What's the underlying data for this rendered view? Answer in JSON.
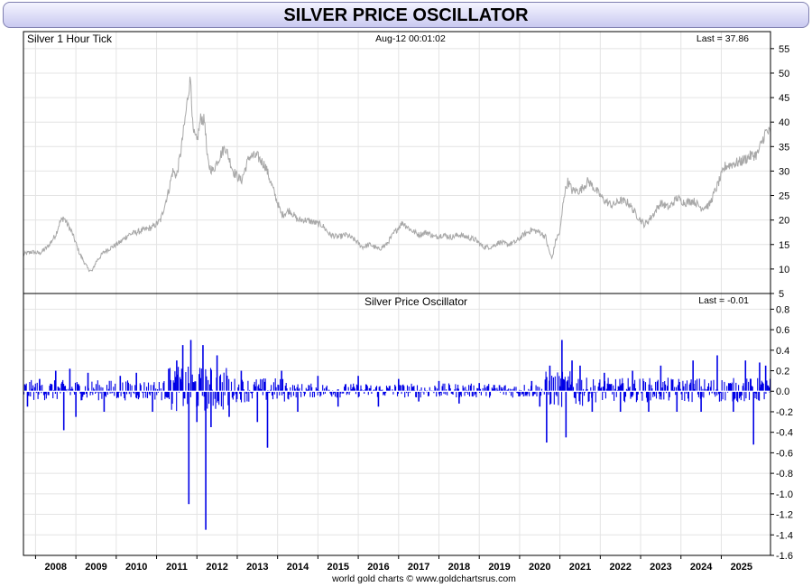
{
  "title": "SILVER PRICE OSCILLATOR",
  "footer": "world gold charts © www.goldchartsrus.com",
  "colors": {
    "price": "#a8a8a8",
    "oscillator": "#0000e6",
    "grid": "#e4e4e4",
    "frame": "#000000",
    "title_bg": "#c9c9f0"
  },
  "chart_data": [
    {
      "type": "line",
      "name_label": "Silver 1 Hour Tick",
      "center_label": "Aug-12  00:01:02",
      "last_label": "Last = 37.86",
      "ylim": [
        5,
        57
      ],
      "yticks": [
        5,
        10,
        15,
        20,
        25,
        30,
        35,
        40,
        45,
        50,
        55
      ],
      "xlim": [
        2007.2,
        2025.72
      ],
      "xticks": [
        "2008",
        "2009",
        "2010",
        "2011",
        "2012",
        "2013",
        "2014",
        "2015",
        "2016",
        "2017",
        "2018",
        "2019",
        "2020",
        "2021",
        "2022",
        "2023",
        "2024",
        "2025"
      ],
      "grid": true,
      "series": [
        {
          "x": [
            2007.2,
            2007.4,
            2007.6,
            2007.8,
            2008.0,
            2008.1,
            2008.2,
            2008.4,
            2008.6,
            2008.8,
            2008.9,
            2009.0,
            2009.2,
            2009.4,
            2009.6,
            2009.8,
            2010.0,
            2010.2,
            2010.4,
            2010.6,
            2010.8,
            2010.9,
            2011.0,
            2011.1,
            2011.2,
            2011.3,
            2011.35,
            2011.4,
            2011.5,
            2011.6,
            2011.7,
            2011.75,
            2011.8,
            2011.9,
            2012.0,
            2012.2,
            2012.4,
            2012.6,
            2012.8,
            2013.0,
            2013.2,
            2013.4,
            2013.6,
            2013.8,
            2014.0,
            2014.2,
            2014.4,
            2014.6,
            2014.8,
            2015.0,
            2015.2,
            2015.4,
            2015.6,
            2015.8,
            2016.0,
            2016.2,
            2016.4,
            2016.6,
            2016.8,
            2017.0,
            2017.2,
            2017.4,
            2017.6,
            2017.8,
            2018.0,
            2018.2,
            2018.4,
            2018.6,
            2018.8,
            2019.0,
            2019.2,
            2019.4,
            2019.6,
            2019.8,
            2020.0,
            2020.15,
            2020.2,
            2020.3,
            2020.4,
            2020.5,
            2020.6,
            2020.7,
            2020.8,
            2021.0,
            2021.2,
            2021.4,
            2021.6,
            2021.8,
            2022.0,
            2022.2,
            2022.4,
            2022.6,
            2022.8,
            2023.0,
            2023.2,
            2023.4,
            2023.6,
            2023.8,
            2024.0,
            2024.2,
            2024.4,
            2024.6,
            2024.8,
            2025.0,
            2025.2,
            2025.4,
            2025.6,
            2025.72
          ],
          "y": [
            13.0,
            13.5,
            13.2,
            14.5,
            17.0,
            19.5,
            20.5,
            17.5,
            13.0,
            10.0,
            9.5,
            11.5,
            13.5,
            14.5,
            15.5,
            17.0,
            17.5,
            18.0,
            18.5,
            20.0,
            26.0,
            30.0,
            29.0,
            34.0,
            40.0,
            47.0,
            49.0,
            38.0,
            36.0,
            41.0,
            40.0,
            33.0,
            31.0,
            30.0,
            32.0,
            35.0,
            30.0,
            28.0,
            33.0,
            33.0,
            31.0,
            26.0,
            21.0,
            22.0,
            20.0,
            20.0,
            19.5,
            19.0,
            17.0,
            16.5,
            17.0,
            16.0,
            14.5,
            15.0,
            14.0,
            15.0,
            17.5,
            19.5,
            18.0,
            17.0,
            17.5,
            16.5,
            17.0,
            16.5,
            17.0,
            16.5,
            16.0,
            14.5,
            14.5,
            15.5,
            15.0,
            15.5,
            17.0,
            18.0,
            17.5,
            16.5,
            14.5,
            12.0,
            16.0,
            17.5,
            25.0,
            28.0,
            26.0,
            26.0,
            28.0,
            26.0,
            24.0,
            23.0,
            24.0,
            23.5,
            21.0,
            19.0,
            21.0,
            23.5,
            22.5,
            24.5,
            23.5,
            24.0,
            22.5,
            23.0,
            27.0,
            31.0,
            31.5,
            32.0,
            33.0,
            33.5,
            38.0,
            37.86
          ]
        }
      ]
    },
    {
      "type": "bar",
      "name_label": "Silver Price Oscillator",
      "last_label": "Last = -0.01",
      "ylim": [
        -1.6,
        0.9
      ],
      "yticks": [
        "0.8",
        "0.6",
        "0.4",
        "0.2",
        "0.0",
        "-0.2",
        "-0.4",
        "-0.6",
        "-0.8",
        "-1.0",
        "-1.2",
        "-1.4",
        "-1.6"
      ],
      "grid": true,
      "series": [
        {
          "x": [
            2007.3,
            2007.6,
            2008.0,
            2008.2,
            2008.35,
            2008.5,
            2008.8,
            2009.2,
            2009.6,
            2010.0,
            2010.4,
            2010.8,
            2011.0,
            2011.15,
            2011.3,
            2011.35,
            2011.5,
            2011.65,
            2011.72,
            2011.85,
            2012.0,
            2012.3,
            2012.6,
            2013.0,
            2013.25,
            2013.6,
            2014.0,
            2014.5,
            2015.0,
            2015.5,
            2016.0,
            2016.5,
            2017.0,
            2017.5,
            2018.0,
            2018.5,
            2019.0,
            2019.5,
            2019.8,
            2020.0,
            2020.17,
            2020.25,
            2020.55,
            2020.65,
            2020.8,
            2021.0,
            2021.3,
            2021.6,
            2022.0,
            2022.3,
            2022.7,
            2023.0,
            2023.4,
            2023.8,
            2024.0,
            2024.4,
            2024.8,
            2025.1,
            2025.3,
            2025.45,
            2025.6,
            2025.7
          ],
          "y": [
            -0.15,
            0.12,
            0.2,
            -0.38,
            0.22,
            -0.25,
            0.18,
            -0.2,
            0.15,
            0.18,
            -0.2,
            0.22,
            0.3,
            0.45,
            -1.1,
            0.5,
            -0.3,
            0.45,
            -1.35,
            -0.35,
            0.35,
            -0.25,
            0.2,
            -0.3,
            -0.55,
            0.2,
            -0.2,
            0.15,
            -0.15,
            0.15,
            -0.15,
            0.12,
            -0.1,
            0.1,
            -0.12,
            0.08,
            0.06,
            -0.05,
            0.1,
            -0.15,
            -0.5,
            0.25,
            0.5,
            -0.45,
            0.3,
            0.25,
            -0.2,
            0.18,
            -0.2,
            0.2,
            -0.2,
            0.25,
            -0.2,
            0.3,
            -0.2,
            0.35,
            -0.2,
            0.3,
            -0.52,
            0.28,
            0.25,
            -0.01
          ]
        }
      ]
    }
  ]
}
